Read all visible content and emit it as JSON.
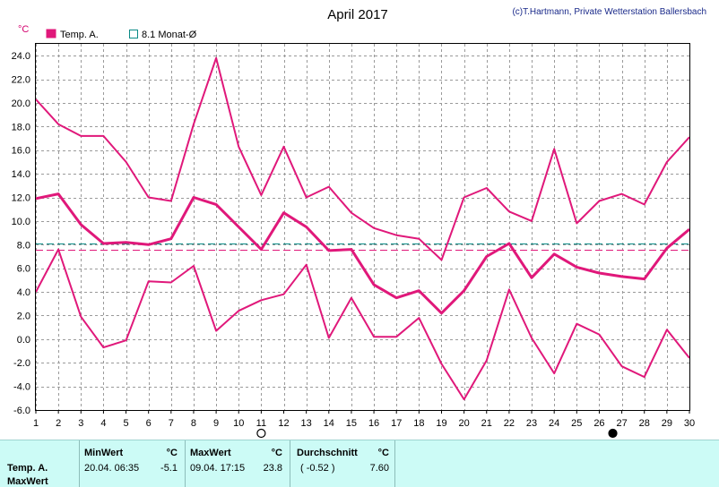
{
  "title": "April 2017",
  "credit": "(c)T.Hartmann, Private Wetterstation Ballersbach",
  "unit_label": "°C",
  "legend": [
    {
      "label": "Temp. A.",
      "color": "#e0187a",
      "filled": true
    },
    {
      "label": "8.1 Monat-Ø",
      "color": "#0a8a86",
      "filled": false
    }
  ],
  "chart_data": {
    "type": "line",
    "x": [
      1,
      2,
      3,
      4,
      5,
      6,
      7,
      8,
      9,
      10,
      11,
      12,
      13,
      14,
      15,
      16,
      17,
      18,
      19,
      20,
      21,
      22,
      23,
      24,
      25,
      26,
      27,
      28,
      29,
      30
    ],
    "xlim": [
      1,
      30
    ],
    "ylim": [
      -6,
      25
    ],
    "y_ticks": [
      "-6.0",
      "-4.0",
      "-2.0",
      "0.0",
      "2.0",
      "4.0",
      "6.0",
      "8.0",
      "10.0",
      "12.0",
      "14.0",
      "16.0",
      "18.0",
      "20.0",
      "22.0",
      "24.0"
    ],
    "x_ticks": [
      "1",
      "2",
      "3",
      "4",
      "5",
      "6",
      "7",
      "8",
      "9",
      "10",
      "11",
      "12",
      "13",
      "14",
      "15",
      "16",
      "17",
      "18",
      "19",
      "20",
      "21",
      "22",
      "23",
      "24",
      "25",
      "26",
      "27",
      "28",
      "29",
      "30"
    ],
    "grid": true,
    "series": [
      {
        "role": "max",
        "color": "#e0187a",
        "width": 2,
        "values": [
          20.3,
          18.2,
          17.2,
          17.2,
          15.0,
          12.0,
          11.7,
          18.2,
          23.8,
          16.3,
          12.2,
          16.3,
          12.0,
          12.9,
          10.7,
          9.4,
          8.8,
          8.5,
          6.7,
          12.0,
          12.8,
          10.8,
          10.0,
          16.1,
          9.8,
          11.7,
          12.3,
          11.4,
          15.0,
          17.1
        ]
      },
      {
        "role": "avg",
        "color": "#e0187a",
        "width": 3,
        "values": [
          11.9,
          12.3,
          9.7,
          8.1,
          8.2,
          8.0,
          8.5,
          12.0,
          11.4,
          9.5,
          7.6,
          10.7,
          9.5,
          7.5,
          7.6,
          4.6,
          3.5,
          4.1,
          2.2,
          4.1,
          7.0,
          8.1,
          5.2,
          7.2,
          6.1,
          5.6,
          5.3,
          5.1,
          7.7,
          9.3
        ]
      },
      {
        "role": "min",
        "color": "#e0187a",
        "width": 2,
        "values": [
          4.0,
          7.6,
          1.9,
          -0.7,
          -0.1,
          4.9,
          4.8,
          6.2,
          0.7,
          2.4,
          3.3,
          3.8,
          6.3,
          0.1,
          3.5,
          0.2,
          0.2,
          1.8,
          -2.1,
          -5.1,
          -1.8,
          4.2,
          0.1,
          -2.9,
          1.3,
          0.4,
          -2.3,
          -3.2,
          0.8,
          -1.6
        ]
      }
    ],
    "reference_lines": [
      {
        "value": 8.1,
        "color": "#0a8a86"
      },
      {
        "value": 7.6,
        "color": "#e0187a"
      }
    ],
    "moon_markers": [
      {
        "day": 11,
        "phase": "full"
      },
      {
        "day": 26.6,
        "phase": "new"
      }
    ]
  },
  "stats": {
    "row_label_1": "Temp. A.",
    "row_label_2": "MaxWert",
    "min_header": "MinWert",
    "min_unit": "°C",
    "min_when": "20.04.  06:35",
    "min_value": "-5.1",
    "max_header": "MaxWert",
    "max_unit": "°C",
    "max_when": "09.04.  17:15",
    "max_value": "23.8",
    "avg_header": "Durchschnitt",
    "avg_unit": "°C",
    "avg_dev": "( -0.52 )",
    "avg_value": "7.60"
  }
}
